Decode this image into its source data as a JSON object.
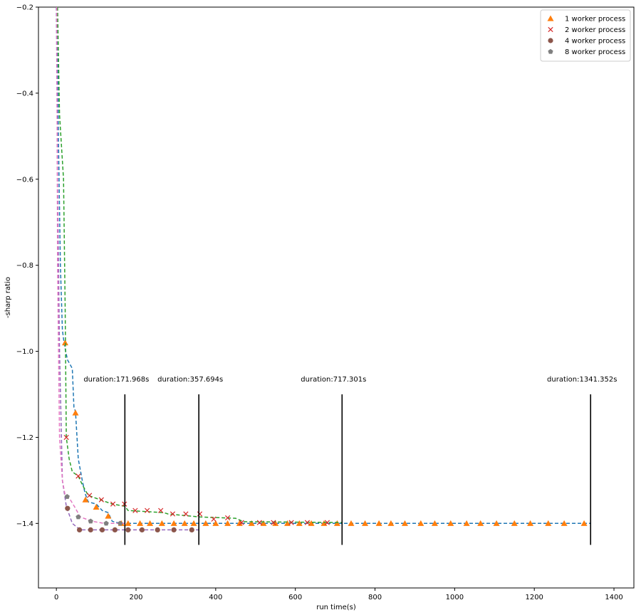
{
  "chart_data": {
    "type": "line",
    "xlabel": "run time(s)",
    "ylabel": "-sharp ratio",
    "xlim": [
      -45,
      1450
    ],
    "ylim": [
      -1.55,
      -0.2
    ],
    "xticks": [
      0,
      200,
      400,
      600,
      800,
      1000,
      1200,
      1400
    ],
    "yticks": [
      -1.4,
      -1.2,
      -1.0,
      -0.8,
      -0.6,
      -0.4,
      -0.2
    ],
    "legend": {
      "position": "top-right"
    },
    "series": [
      {
        "name": "1 worker process",
        "line_color": "#1f77b4",
        "marker_color": "#ff7f0e",
        "marker": "triangle",
        "line": [
          [
            2,
            -0.2
          ],
          [
            5,
            -0.5
          ],
          [
            10,
            -0.8
          ],
          [
            15,
            -0.95
          ],
          [
            20,
            -0.985
          ],
          [
            28,
            -1.02
          ],
          [
            40,
            -1.04
          ],
          [
            44,
            -1.13
          ],
          [
            48,
            -1.14
          ],
          [
            55,
            -1.25
          ],
          [
            65,
            -1.3
          ],
          [
            72,
            -1.33
          ],
          [
            80,
            -1.35
          ],
          [
            100,
            -1.355
          ],
          [
            115,
            -1.37
          ],
          [
            130,
            -1.375
          ],
          [
            140,
            -1.395
          ],
          [
            160,
            -1.4
          ],
          [
            1341,
            -1.4
          ]
        ],
        "markers": [
          [
            22,
            -0.98
          ],
          [
            48,
            -1.143
          ],
          [
            73,
            -1.345
          ],
          [
            100,
            -1.362
          ],
          [
            130,
            -1.383
          ],
          [
            163,
            -1.4
          ],
          [
            180,
            -1.4
          ],
          [
            210,
            -1.4
          ],
          [
            235,
            -1.4
          ],
          [
            265,
            -1.4
          ],
          [
            295,
            -1.4
          ],
          [
            322,
            -1.4
          ],
          [
            345,
            -1.4
          ],
          [
            375,
            -1.4
          ],
          [
            400,
            -1.4
          ],
          [
            430,
            -1.4
          ],
          [
            460,
            -1.4
          ],
          [
            490,
            -1.4
          ],
          [
            520,
            -1.4
          ],
          [
            550,
            -1.4
          ],
          [
            580,
            -1.4
          ],
          [
            610,
            -1.4
          ],
          [
            640,
            -1.4
          ],
          [
            672,
            -1.4
          ],
          [
            705,
            -1.4
          ],
          [
            740,
            -1.4
          ],
          [
            775,
            -1.4
          ],
          [
            810,
            -1.4
          ],
          [
            840,
            -1.4
          ],
          [
            875,
            -1.4
          ],
          [
            915,
            -1.4
          ],
          [
            950,
            -1.4
          ],
          [
            990,
            -1.4
          ],
          [
            1030,
            -1.4
          ],
          [
            1065,
            -1.4
          ],
          [
            1105,
            -1.4
          ],
          [
            1150,
            -1.4
          ],
          [
            1190,
            -1.4
          ],
          [
            1235,
            -1.4
          ],
          [
            1275,
            -1.4
          ],
          [
            1325,
            -1.4
          ]
        ]
      },
      {
        "name": "2 worker process",
        "line_color": "#2ca02c",
        "marker_color": "#d62728",
        "marker": "x",
        "line": [
          [
            3,
            -0.2
          ],
          [
            8,
            -0.45
          ],
          [
            18,
            -0.6
          ],
          [
            22,
            -0.9
          ],
          [
            25,
            -1.2
          ],
          [
            32,
            -1.25
          ],
          [
            40,
            -1.28
          ],
          [
            55,
            -1.29
          ],
          [
            65,
            -1.31
          ],
          [
            80,
            -1.335
          ],
          [
            110,
            -1.345
          ],
          [
            140,
            -1.355
          ],
          [
            172,
            -1.36
          ],
          [
            180,
            -1.37
          ],
          [
            270,
            -1.375
          ],
          [
            280,
            -1.378
          ],
          [
            360,
            -1.385
          ],
          [
            450,
            -1.388
          ],
          [
            470,
            -1.396
          ],
          [
            717,
            -1.398
          ]
        ],
        "markers": [
          [
            25,
            -1.2
          ],
          [
            55,
            -1.29
          ],
          [
            83,
            -1.335
          ],
          [
            113,
            -1.345
          ],
          [
            142,
            -1.355
          ],
          [
            171,
            -1.355
          ],
          [
            198,
            -1.37
          ],
          [
            228,
            -1.37
          ],
          [
            262,
            -1.37
          ],
          [
            292,
            -1.378
          ],
          [
            325,
            -1.378
          ],
          [
            360,
            -1.378
          ],
          [
            395,
            -1.39
          ],
          [
            430,
            -1.387
          ],
          [
            465,
            -1.398
          ],
          [
            510,
            -1.398
          ],
          [
            545,
            -1.398
          ],
          [
            590,
            -1.398
          ],
          [
            630,
            -1.398
          ],
          [
            680,
            -1.398
          ]
        ]
      },
      {
        "name": "4 worker process",
        "line_color": "#9467bd",
        "marker_color": "#8c564b",
        "marker": "circle",
        "line": [
          [
            0,
            -0.2
          ],
          [
            3,
            -0.6
          ],
          [
            8,
            -1.0
          ],
          [
            15,
            -1.3
          ],
          [
            25,
            -1.36
          ],
          [
            40,
            -1.4
          ],
          [
            60,
            -1.415
          ],
          [
            358,
            -1.415
          ]
        ],
        "markers": [
          [
            28,
            -1.365
          ],
          [
            58,
            -1.415
          ],
          [
            86,
            -1.415
          ],
          [
            115,
            -1.415
          ],
          [
            147,
            -1.415
          ],
          [
            180,
            -1.415
          ],
          [
            215,
            -1.415
          ],
          [
            254,
            -1.415
          ],
          [
            295,
            -1.415
          ],
          [
            340,
            -1.415
          ]
        ]
      },
      {
        "name": "8 worker process",
        "line_color": "#e377c2",
        "marker_color": "#7f7f7f",
        "marker": "pentagon",
        "line": [
          [
            1,
            -0.2
          ],
          [
            3,
            -0.8
          ],
          [
            8,
            -1.2
          ],
          [
            15,
            -1.3
          ],
          [
            22,
            -1.335
          ],
          [
            35,
            -1.345
          ],
          [
            45,
            -1.36
          ],
          [
            60,
            -1.385
          ],
          [
            90,
            -1.395
          ],
          [
            120,
            -1.4
          ],
          [
            172,
            -1.4
          ]
        ],
        "markers": [
          [
            27,
            -1.338
          ],
          [
            55,
            -1.385
          ],
          [
            86,
            -1.395
          ],
          [
            125,
            -1.4
          ],
          [
            160,
            -1.4
          ]
        ]
      }
    ],
    "vlines": [
      {
        "x": 171.968,
        "ymin": -1.45,
        "ymax": -1.1,
        "label": "duration:171.968s"
      },
      {
        "x": 357.694,
        "ymin": -1.45,
        "ymax": -1.1,
        "label": "duration:357.694s"
      },
      {
        "x": 717.301,
        "ymin": -1.45,
        "ymax": -1.1,
        "label": "duration:717.301s"
      },
      {
        "x": 1341.352,
        "ymin": -1.45,
        "ymax": -1.1,
        "label": "duration:1341.352s"
      }
    ]
  }
}
